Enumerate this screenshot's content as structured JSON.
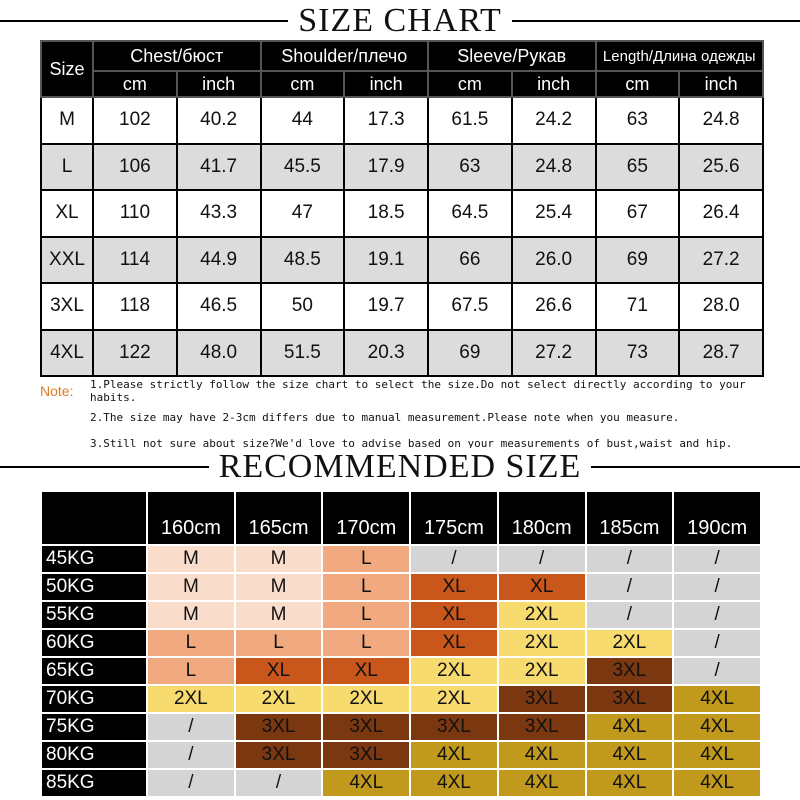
{
  "size_chart": {
    "title": "SIZE CHART",
    "size_header": "Size",
    "groups": [
      {
        "label": "Chest/бюст",
        "units": [
          "cm",
          "inch"
        ]
      },
      {
        "label": "Shoulder/плечо",
        "units": [
          "cm",
          "inch"
        ]
      },
      {
        "label": "Sleeve/Рукав",
        "units": [
          "cm",
          "inch"
        ]
      },
      {
        "label": "Length/Длина одежды",
        "units": [
          "cm",
          "inch"
        ]
      }
    ],
    "rows": [
      [
        "M",
        "102",
        "40.2",
        "44",
        "17.3",
        "61.5",
        "24.2",
        "63",
        "24.8"
      ],
      [
        "L",
        "106",
        "41.7",
        "45.5",
        "17.9",
        "63",
        "24.8",
        "65",
        "25.6"
      ],
      [
        "XL",
        "110",
        "43.3",
        "47",
        "18.5",
        "64.5",
        "25.4",
        "67",
        "26.4"
      ],
      [
        "XXL",
        "114",
        "44.9",
        "48.5",
        "19.1",
        "66",
        "26.0",
        "69",
        "27.2"
      ],
      [
        "3XL",
        "118",
        "46.5",
        "50",
        "19.7",
        "67.5",
        "26.6",
        "71",
        "28.0"
      ],
      [
        "4XL",
        "122",
        "48.0",
        "51.5",
        "20.3",
        "69",
        "27.2",
        "73",
        "28.7"
      ]
    ]
  },
  "notes": {
    "label": "Note:",
    "items": [
      "1.Please strictly follow the size chart to select the size.Do not select directly according to your habits.",
      "2.The size may have 2-3cm differs due to manual measurement.Please note when you measure.",
      "3.Still not sure about size?We'd love to advise based on your measurements of bust,waist and hip."
    ]
  },
  "recommended": {
    "title": "RECOMMENDED SIZE",
    "heights": [
      "160cm",
      "165cm",
      "170cm",
      "175cm",
      "180cm",
      "185cm",
      "190cm"
    ],
    "rows": [
      {
        "weight": "45KG",
        "sizes": [
          "M",
          "M",
          "L",
          "/",
          "/",
          "/",
          "/"
        ]
      },
      {
        "weight": "50KG",
        "sizes": [
          "M",
          "M",
          "L",
          "XL",
          "XL",
          "/",
          "/"
        ]
      },
      {
        "weight": "55KG",
        "sizes": [
          "M",
          "M",
          "L",
          "XL",
          "2XL",
          "/",
          "/"
        ]
      },
      {
        "weight": "60KG",
        "sizes": [
          "L",
          "L",
          "L",
          "XL",
          "2XL",
          "2XL",
          "/"
        ]
      },
      {
        "weight": "65KG",
        "sizes": [
          "L",
          "XL",
          "XL",
          "2XL",
          "2XL",
          "3XL",
          "/"
        ]
      },
      {
        "weight": "70KG",
        "sizes": [
          "2XL",
          "2XL",
          "2XL",
          "2XL",
          "3XL",
          "3XL",
          "4XL"
        ]
      },
      {
        "weight": "75KG",
        "sizes": [
          "/",
          "3XL",
          "3XL",
          "3XL",
          "3XL",
          "4XL",
          "4XL"
        ]
      },
      {
        "weight": "80KG",
        "sizes": [
          "/",
          "3XL",
          "3XL",
          "4XL",
          "4XL",
          "4XL",
          "4XL"
        ]
      },
      {
        "weight": "85KG",
        "sizes": [
          "/",
          "/",
          "4XL",
          "4XL",
          "4XL",
          "4XL",
          "4XL"
        ]
      }
    ],
    "colors": {
      "M": "#fadccb",
      "L": "#f1a97f",
      "XL": "#c9561a",
      "2XL": "#f7db6e",
      "3XL": "#7b3810",
      "4XL": "#c19a1d",
      "/": "#d4d4d4"
    }
  }
}
